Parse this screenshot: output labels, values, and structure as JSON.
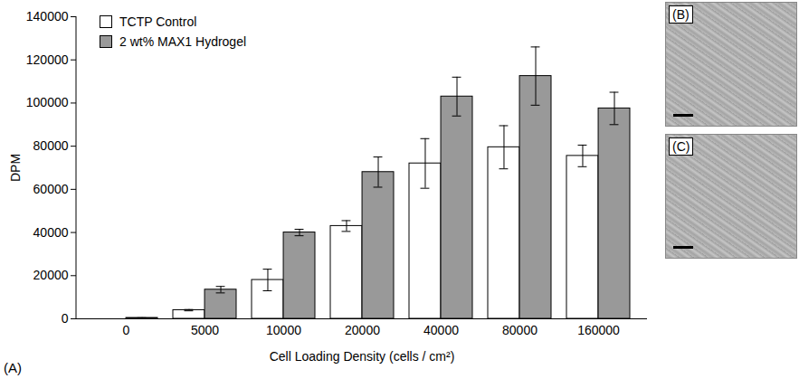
{
  "chart_data": {
    "type": "bar",
    "panel_label": "(A)",
    "x_label": "Cell Loading Density (cells / cm²)",
    "y_label": "DPM",
    "categories": [
      "0",
      "5000",
      "10000",
      "20000",
      "40000",
      "80000",
      "160000"
    ],
    "series": [
      {
        "name": "TCTP Control",
        "color": "#ffffff",
        "values": [
          0,
          4000,
          18000,
          43000,
          72000,
          79500,
          75500
        ],
        "errors": [
          0,
          300,
          5000,
          2500,
          11500,
          10000,
          5000
        ]
      },
      {
        "name": "2 wt% MAX1 Hydrogel",
        "color": "#999999",
        "values": [
          400,
          13500,
          40000,
          68000,
          103000,
          112500,
          97500
        ],
        "errors": [
          100,
          1500,
          1500,
          7000,
          9000,
          13500,
          7500
        ]
      }
    ],
    "ylim": [
      0,
      140000
    ],
    "yticks": [
      0,
      20000,
      40000,
      60000,
      80000,
      100000,
      120000,
      140000
    ],
    "legend": "top-left"
  },
  "panels": [
    {
      "label": "(B)"
    },
    {
      "label": "(C)"
    }
  ]
}
